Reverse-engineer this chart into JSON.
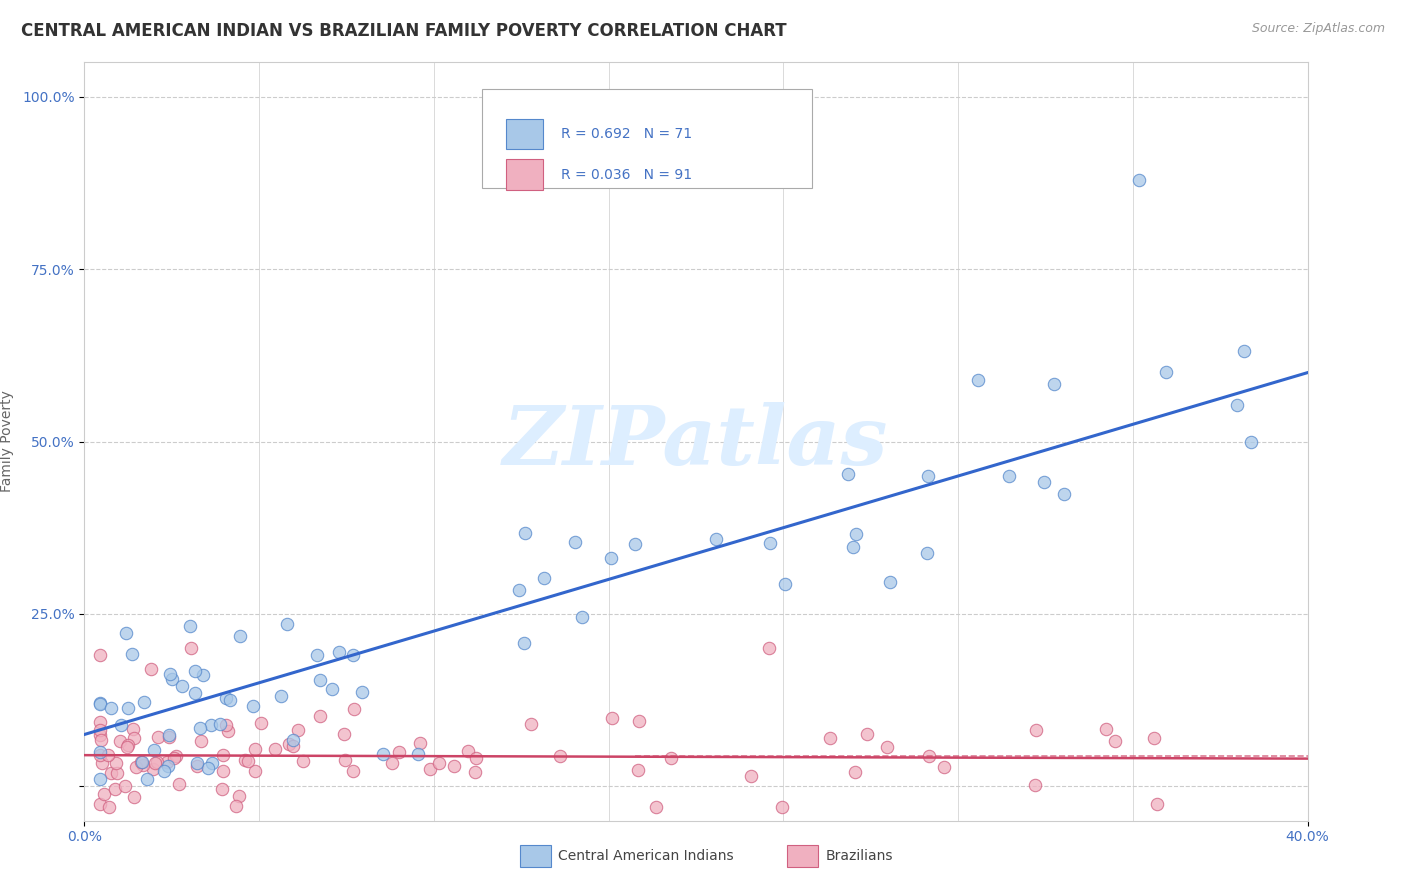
{
  "title": "CENTRAL AMERICAN INDIAN VS BRAZILIAN FAMILY POVERTY CORRELATION CHART",
  "source": "Source: ZipAtlas.com",
  "ylabel": "Family Poverty",
  "xlim": [
    0.0,
    0.4
  ],
  "ylim": [
    -0.05,
    1.05
  ],
  "ytick_vals": [
    0.0,
    0.25,
    0.5,
    0.75,
    1.0
  ],
  "ytick_labels": [
    "",
    "25.0%",
    "50.0%",
    "75.0%",
    "100.0%"
  ],
  "xtick_vals": [
    0.0,
    0.4
  ],
  "xtick_labels": [
    "0.0%",
    "40.0%"
  ],
  "blue_color": "#a8c8e8",
  "blue_edge": "#5588cc",
  "pink_color": "#f0b0c0",
  "pink_edge": "#d06080",
  "blue_line_color": "#3366cc",
  "pink_line_color": "#cc4466",
  "background_color": "#ffffff",
  "grid_color": "#cccccc",
  "tick_color": "#4472c4",
  "ylabel_color": "#666666",
  "title_color": "#333333",
  "source_color": "#999999",
  "watermark_color": "#ddeeff",
  "title_fontsize": 12,
  "tick_fontsize": 10,
  "ylabel_fontsize": 10,
  "source_fontsize": 9,
  "marker_size": 80,
  "blue_trend_x": [
    0.0,
    0.4
  ],
  "blue_trend_y": [
    0.075,
    0.6
  ],
  "pink_trend_x": [
    0.0,
    0.4
  ],
  "pink_trend_y": [
    0.045,
    0.04
  ],
  "legend_entries": [
    {
      "label": "R = 0.692   N = 71",
      "color": "#a8c8e8",
      "edge": "#5588cc"
    },
    {
      "label": "R = 0.036   N = 91",
      "color": "#f0b0c0",
      "edge": "#d06080"
    }
  ],
  "bottom_legend": [
    {
      "label": "Central American Indians",
      "color": "#a8c8e8",
      "edge": "#5588cc"
    },
    {
      "label": "Brazilians",
      "color": "#f0b0c0",
      "edge": "#d06080"
    }
  ]
}
